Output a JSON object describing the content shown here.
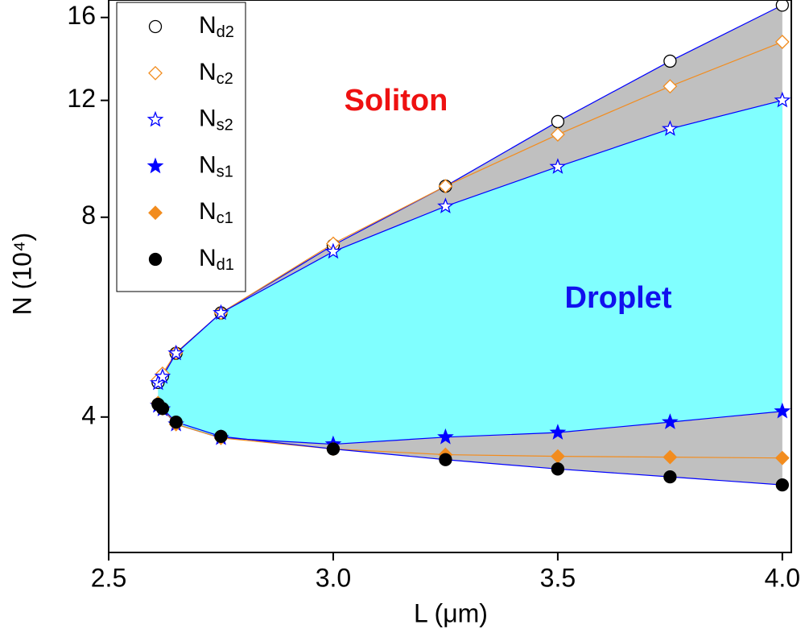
{
  "chart_data": {
    "type": "line",
    "x_label": "L (μm)",
    "y_label": "N (10⁴)",
    "x": [
      2.61,
      2.62,
      2.65,
      2.75,
      3.0,
      3.25,
      3.5,
      3.75,
      4.0
    ],
    "series": [
      {
        "name": "Nd2",
        "color": "#000000",
        "line_color": "#0000ff",
        "marker": "circle",
        "filled": false,
        "values": [
          4.51,
          4.61,
          4.99,
          5.74,
          7.26,
          8.91,
          11.15,
          13.75,
          16.7
        ]
      },
      {
        "name": "Nc2",
        "color": "#f28c1e",
        "line_color": "#f28c1e",
        "marker": "diamond",
        "filled": false,
        "values": [
          4.55,
          4.65,
          5.0,
          5.74,
          7.3,
          8.91,
          10.66,
          12.6,
          14.7
        ]
      },
      {
        "name": "Ns2",
        "color": "#0000ff",
        "line_color": "#0000ff",
        "marker": "star",
        "filled": false,
        "values": [
          4.5,
          4.6,
          4.99,
          5.74,
          7.1,
          8.31,
          9.53,
          10.87,
          12.0
        ]
      },
      {
        "name": "Ns1",
        "color": "#0000ff",
        "line_color": "#0000ff",
        "marker": "star",
        "filled": true,
        "values": [
          4.16,
          4.11,
          3.9,
          3.72,
          3.64,
          3.73,
          3.79,
          3.93,
          4.08
        ]
      },
      {
        "name": "Nc1",
        "color": "#f28c1e",
        "line_color": "#f28c1e",
        "marker": "diamond",
        "filled": true,
        "values": [
          4.2,
          4.12,
          3.9,
          3.72,
          3.58,
          3.51,
          3.49,
          3.48,
          3.47
        ]
      },
      {
        "name": "Nd1",
        "color": "#000000",
        "line_color": "#0000ff",
        "marker": "circle",
        "filled": true,
        "values": [
          4.18,
          4.12,
          3.93,
          3.74,
          3.58,
          3.45,
          3.34,
          3.25,
          3.16
        ]
      }
    ],
    "fills": [
      {
        "color": "#c0c0c0"
      },
      {
        "color": "#80ffff"
      }
    ],
    "annotations": [
      {
        "text": "Soliton",
        "color": "#ee1111"
      },
      {
        "text": "Droplet",
        "color": "#1111ee"
      }
    ],
    "xlim": [
      2.5,
      4.02
    ],
    "xticks": [
      2.5,
      {
        "value": 3.0,
        "label": "3.0"
      },
      3.5,
      {
        "value": 4.0,
        "label": "4.0"
      }
    ],
    "ylim": [
      2.5,
      17
    ],
    "yticks": [
      4,
      8,
      12,
      16
    ],
    "y_scale": "log",
    "legend": "upper-left"
  }
}
